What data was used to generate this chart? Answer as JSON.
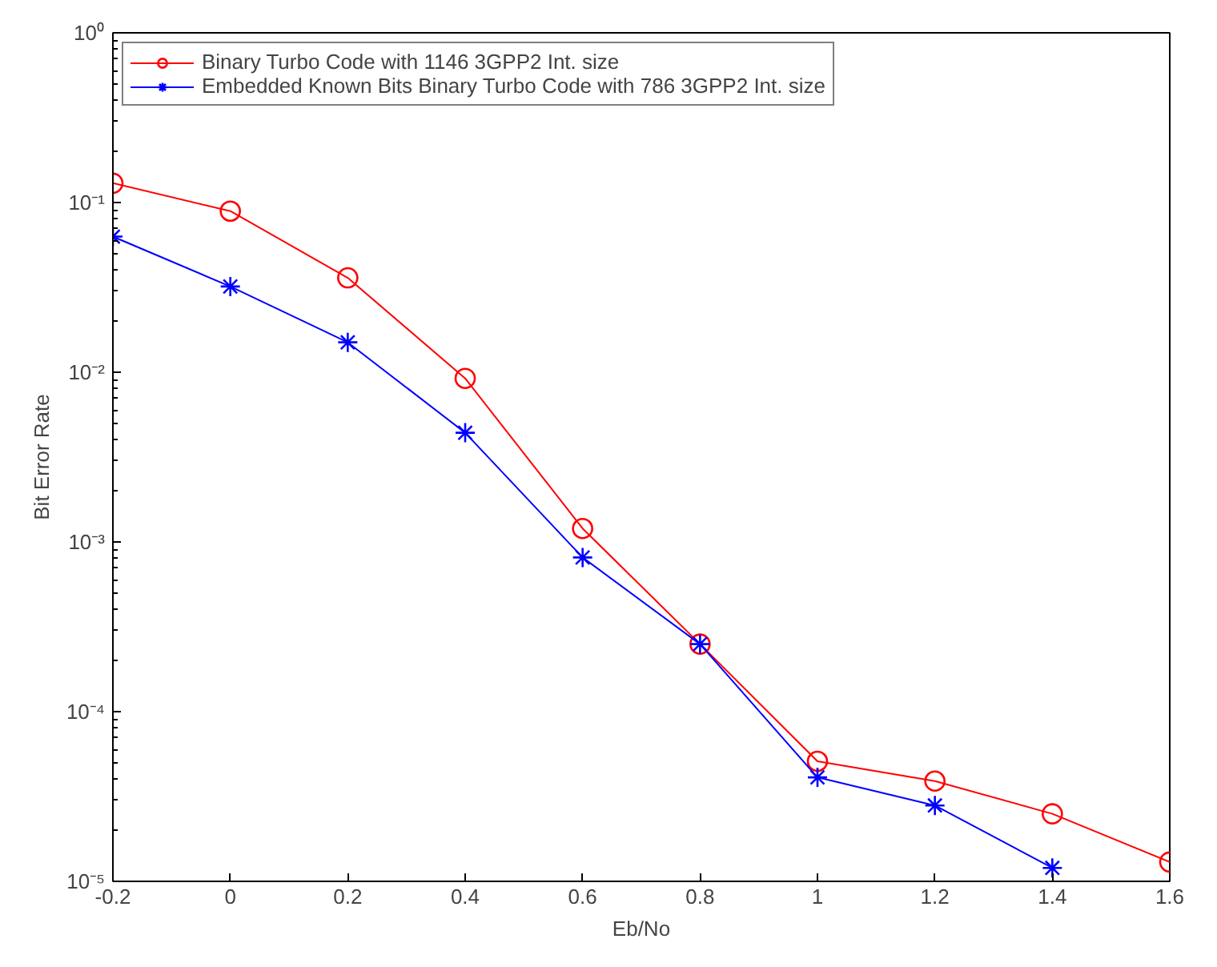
{
  "chart_data": {
    "type": "line",
    "xlabel": "Eb/No",
    "ylabel": "Bit Error Rate",
    "x": [
      -0.2,
      0,
      0.2,
      0.4,
      0.6,
      0.8,
      1,
      1.2,
      1.4,
      1.6
    ],
    "series": [
      {
        "name": "Binary Turbo Code with 1146 3GPP2 Int. size",
        "color": "#ff0000",
        "marker": "circle",
        "values": [
          0.13,
          0.089,
          0.036,
          0.0092,
          0.0012,
          0.00025,
          5.1e-05,
          3.9e-05,
          2.5e-05,
          1.3e-05
        ]
      },
      {
        "name": "Embedded Known Bits Binary Turbo Code with 786 3GPP2 Int. size",
        "color": "#0000ff",
        "marker": "cross",
        "values": [
          0.063,
          0.032,
          0.015,
          0.0044,
          0.00081,
          0.00025,
          4.1e-05,
          2.8e-05,
          1.2e-05,
          null
        ]
      }
    ],
    "log": "y",
    "xlim": [
      -0.2,
      1.6
    ],
    "ylim": [
      1e-05,
      1
    ],
    "xticks": [
      -0.2,
      0,
      0.2,
      0.4,
      0.6,
      0.8,
      1,
      1.2,
      1.4,
      1.6
    ],
    "yticks": [
      {
        "value": 1e-05,
        "label": "10⁻⁵"
      },
      {
        "value": 0.0001,
        "label": "10⁻⁴"
      },
      {
        "value": 0.001,
        "label": "10⁻³"
      },
      {
        "value": 0.01,
        "label": "10⁻²"
      },
      {
        "value": 0.1,
        "label": "10⁻¹"
      },
      {
        "value": 1,
        "label": "10⁰"
      }
    ],
    "grid": false,
    "legend": "top left",
    "line_style": "solid"
  }
}
